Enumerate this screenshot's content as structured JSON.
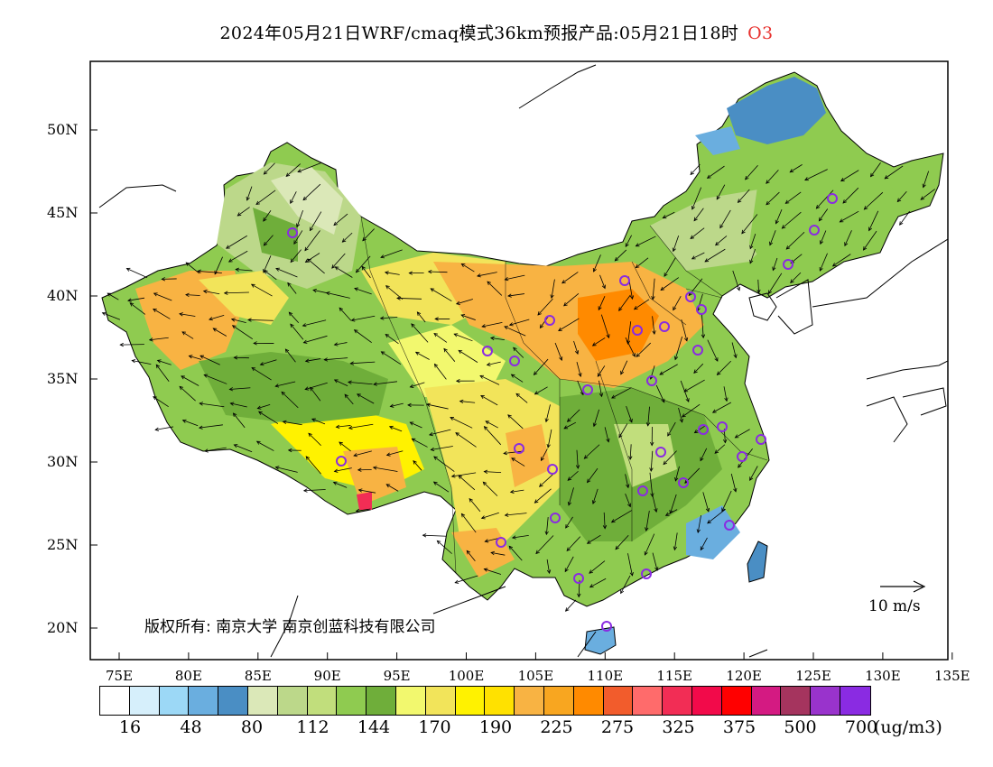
{
  "title": "2024年05月21日WRF/cmaq模式36km预报产品:05月21日18时",
  "species": "O3",
  "lat_labels": [
    "50N",
    "45N",
    "40N",
    "35N",
    "30N",
    "25N",
    "20N"
  ],
  "lon_labels": [
    "75E",
    "80E",
    "85E",
    "90E",
    "95E",
    "100E",
    "105E",
    "110E",
    "115E",
    "120E",
    "125E",
    "130E",
    "135E"
  ],
  "copyright": "版权所有: 南京大学 南京创蓝科技有限公司",
  "wind_reference": "10 m/s",
  "legend": {
    "colors": [
      "#ffffff",
      "#d6effb",
      "#9cd8f6",
      "#6aaedf",
      "#4a8ec4",
      "#dbe8b8",
      "#bcd88a",
      "#c1de7c",
      "#8fcb50",
      "#6fae3a",
      "#f2f86e",
      "#f2e45a",
      "#fff200",
      "#ffe100",
      "#f8b343",
      "#f8a620",
      "#ff8a00",
      "#f25c2c",
      "#ff6b6b",
      "#f22d55",
      "#f20a4a",
      "#ff0000",
      "#d41a82",
      "#a5345e",
      "#9933cc",
      "#8a2be2"
    ],
    "labels": [
      "16",
      "48",
      "80",
      "112",
      "144",
      "170",
      "190",
      "225",
      "275",
      "325",
      "375",
      "500",
      "700"
    ],
    "unit": "(ug/m3)"
  }
}
